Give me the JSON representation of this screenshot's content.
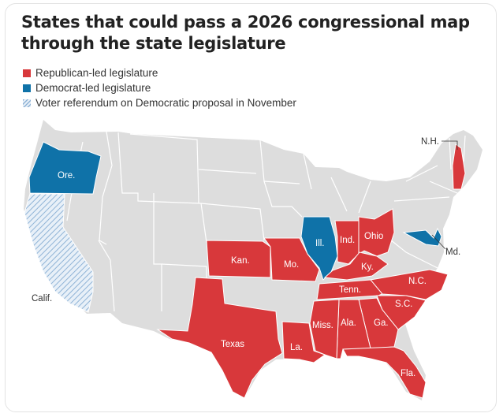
{
  "title": "States that could pass a 2026 congressional map through the state legislature",
  "legend": {
    "red": "Republican-led legislature",
    "blue": "Democrat-led legislature",
    "hatch": "Voter referendum on Democratic proposal in November"
  },
  "colors": {
    "republican": "#d8383b",
    "democrat": "#0f72a8",
    "other": "#dddddd",
    "borders": "#ffffff"
  },
  "states": {
    "oregon": "Ore.",
    "california": "Calif.",
    "kansas": "Kan.",
    "texas": "Texas",
    "missouri": "Mo.",
    "illinois": "Ill.",
    "indiana": "Ind.",
    "ohio": "Ohio",
    "kentucky": "Ky.",
    "tennessee": "Tenn.",
    "north_carolina": "N.C.",
    "south_carolina": "S.C.",
    "georgia": "Ga.",
    "alabama": "Ala.",
    "mississippi": "Miss.",
    "louisiana": "La.",
    "florida": "Fla.",
    "new_hampshire": "N.H.",
    "maryland": "Md."
  }
}
